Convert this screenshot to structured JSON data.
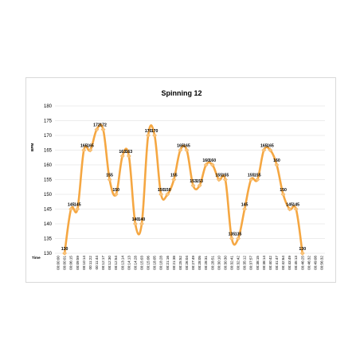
{
  "chart_data": {
    "type": "line",
    "title": "Spinning 12",
    "ylabel": "BPM",
    "xlabel": "Time",
    "ylim": [
      130,
      180
    ],
    "yticks": [
      130,
      135,
      140,
      145,
      150,
      155,
      160,
      165,
      170,
      175,
      180
    ],
    "grid": true,
    "line_color": "#f5a742",
    "marker_color": "#f8c27a",
    "x": [
      "00:00:00",
      "00:00:01",
      "00:06:15",
      "00:09:59",
      "00:10:14",
      "00:11:22",
      "00:11:44",
      "00:12:17",
      "00:12:30",
      "00:12:54",
      "00:13:14",
      "00:14:13",
      "00:14:28",
      "00:15:03",
      "00:15:06",
      "00:18:05",
      "00:18:28",
      "00:21:16",
      "00:21:38",
      "00:25:52",
      "00:26:04",
      "00:27:49",
      "00:28:05",
      "00:28:31",
      "00:28:51",
      "00:30:10",
      "00:30:30",
      "00:32:41",
      "00:32:42",
      "00:35:12",
      "00:37:57",
      "00:38:15",
      "00:38:14",
      "00:40:42",
      "00:41:47",
      "00:42:64",
      "00:43:49",
      "00:45:13",
      "00:46:25",
      "00:46:32",
      "00:49:08",
      "00:56:32"
    ],
    "values": [
      null,
      130,
      145,
      145,
      165,
      165,
      172,
      172,
      155,
      150,
      163,
      163,
      140,
      140,
      170,
      170,
      150,
      150,
      155,
      165,
      165,
      153,
      153,
      160,
      160,
      155,
      155,
      135,
      135,
      145,
      155,
      155,
      165,
      165,
      160,
      150,
      145,
      145,
      130,
      null,
      null,
      null
    ],
    "labels": [
      "",
      "130",
      "145",
      "145",
      "165",
      "165",
      "172",
      "172",
      "155",
      "150",
      "163",
      "163",
      "140",
      "140",
      "170",
      "170",
      "150",
      "150",
      "155",
      "165",
      "165",
      "153",
      "153",
      "160",
      "160",
      "155",
      "155",
      "135",
      "135",
      "145",
      "155",
      "155",
      "165",
      "165",
      "160",
      "150",
      "145",
      "145",
      "130",
      "",
      "",
      ""
    ]
  }
}
